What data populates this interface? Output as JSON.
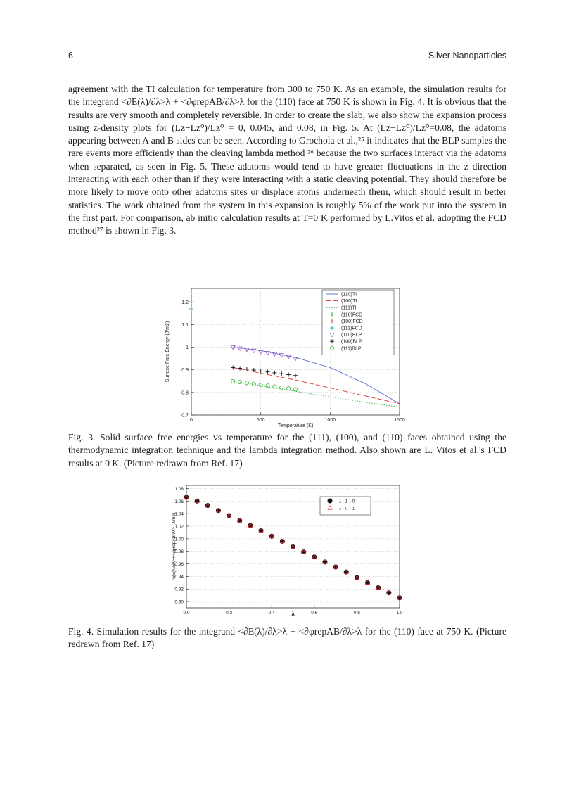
{
  "header": {
    "page": "6",
    "title": "Silver Nanoparticles"
  },
  "body": [
    "agreement with the TI calculation for temperature from 300 to 750 K. As an example, the simulation results for the integrand <∂E(λ)/∂λ>λ + <∂φrepAB/∂λ>λ for the (110) face at 750 K is shown in Fig. 4. It is obvious that the results are very smooth and completely reversible. In order to create the slab, we also show the expansion process using z-density plots for (Lz−Lz⁰)/Lz⁰ = 0, 0.045, and 0.08, in Fig. 5. At (Lz−Lz⁰)/Lz⁰=0.08, the adatoms appearing between A and B sides can be seen. According to Grochola et al.,²⁵ it indicates that the BLP samples the rare events more efficiently than the cleaving lambda method ²⁶ because the two surfaces interact via the adatoms when separated, as seen in Fig. 5. These adatoms would tend to have greater fluctuations in the z direction interacting with each other than if they were interacting with a static cleaving potential. They should therefore be more likely to move onto other adatoms sites or displace atoms underneath them, which should result in better statistics. The work obtained from the system in this expansion is roughly 5% of the work put into the system in the first part. For comparison, ab initio calculation results at T=0 K performed by L.Vitos et al. adopting the FCD method²⁷ is shown in Fig. 3."
  ],
  "captions": [
    "Fig. 3. Solid surface free energies vs temperature for the (111), (100), and (110) faces obtained using the thermodynamic integration technique and the lambda integration method. Also shown are L. Vitos et al.'s FCD results at 0 K. (Picture redrawn from Ref. 17)",
    "Fig. 4. Simulation results for the integrand <∂E(λ)/∂λ>λ + <∂φrepAB/∂λ>λ for the (110) face at 750 K. (Picture redrawn from Ref. 17)"
  ],
  "chart_data": [
    {
      "type": "line",
      "x_label": "Temperature (K)",
      "y_label": "Surface Free Energy (J/m2)",
      "xlim": [
        0,
        1500
      ],
      "ylim": [
        0.7,
        1.26
      ],
      "xticks": [
        0,
        500,
        1000,
        1500
      ],
      "yticks": [
        0.7,
        0.8,
        0.9,
        1,
        1.1,
        1.2
      ],
      "grid": true,
      "legend": "top-right",
      "series": [
        {
          "name": "(110)TI",
          "color": "#5a6fd0",
          "kind": "line",
          "dash": "solid",
          "x": [
            300,
            500,
            750,
            1000,
            1250,
            1500
          ],
          "values": [
            1.0,
            0.985,
            0.955,
            0.91,
            0.84,
            0.75
          ]
        },
        {
          "name": "(100)TI",
          "color": "#e03030",
          "kind": "line",
          "dash": "dashed",
          "x": [
            300,
            500,
            750,
            1000,
            1250,
            1500
          ],
          "values": [
            0.91,
            0.885,
            0.855,
            0.82,
            0.785,
            0.75
          ]
        },
        {
          "name": "(111)TI",
          "color": "#2fb52f",
          "kind": "line",
          "dash": "dotted",
          "x": [
            300,
            500,
            750,
            1000,
            1250,
            1500
          ],
          "values": [
            0.85,
            0.83,
            0.805,
            0.78,
            0.757,
            0.735
          ]
        },
        {
          "name": "(110)FCD",
          "color": "#2fb52f",
          "kind": "marker",
          "marker": "plus",
          "x": [
            0
          ],
          "values": [
            1.24
          ]
        },
        {
          "name": "(100)FCD",
          "color": "#e03030",
          "kind": "marker",
          "marker": "plus",
          "x": [
            0
          ],
          "values": [
            1.2
          ]
        },
        {
          "name": "(111)FCD",
          "color": "#30c0a0",
          "kind": "marker",
          "marker": "plus",
          "x": [
            0
          ],
          "values": [
            1.17
          ]
        },
        {
          "name": "(110)BLP",
          "color": "#9a50c8",
          "kind": "marker",
          "marker": "triangle-down",
          "x": [
            300,
            350,
            400,
            450,
            500,
            550,
            600,
            650,
            700,
            750
          ],
          "values": [
            1.0,
            0.995,
            0.99,
            0.985,
            0.98,
            0.975,
            0.97,
            0.965,
            0.958,
            0.95
          ]
        },
        {
          "name": "(100)BLP",
          "color": "#222222",
          "kind": "marker",
          "marker": "plus",
          "x": [
            300,
            350,
            400,
            450,
            500,
            550,
            600,
            650,
            700,
            750
          ],
          "values": [
            0.91,
            0.907,
            0.903,
            0.899,
            0.895,
            0.891,
            0.887,
            0.883,
            0.879,
            0.875
          ]
        },
        {
          "name": "(111)BLP",
          "color": "#2fb52f",
          "kind": "marker",
          "marker": "circle",
          "x": [
            300,
            350,
            400,
            450,
            500,
            550,
            600,
            650,
            700,
            750
          ],
          "values": [
            0.85,
            0.846,
            0.842,
            0.838,
            0.834,
            0.83,
            0.826,
            0.822,
            0.818,
            0.814
          ]
        }
      ]
    },
    {
      "type": "line",
      "x_label": "λ",
      "y_label": "<∂E(λ)/∂λ>+<∂φrepAB/∂λ> (J/m2)",
      "xlim": [
        0,
        1.0
      ],
      "ylim": [
        0.89,
        1.085
      ],
      "xticks": [
        {
          "value": 0,
          "label": "0.0"
        },
        0.2,
        0.4,
        0.6,
        0.8,
        {
          "value": 1,
          "label": "1.0"
        }
      ],
      "yticks": [
        {
          "value": 0.9,
          "label": "0.90"
        },
        0.92,
        0.94,
        0.96,
        0.98,
        {
          "value": 1,
          "label": "1.00"
        },
        1.02,
        1.04,
        1.06,
        1.08
      ],
      "grid": true,
      "legend": "top-right",
      "series": [
        {
          "name": "λ : 1→0",
          "color": "#111111",
          "kind": "marker",
          "marker": "filled-circle",
          "x": [
            0,
            0.05,
            0.1,
            0.15,
            0.2,
            0.25,
            0.3,
            0.35,
            0.4,
            0.45,
            0.5,
            0.55,
            0.6,
            0.65,
            0.7,
            0.75,
            0.8,
            0.85,
            0.9,
            0.95,
            1.0
          ],
          "values": [
            1.066,
            1.06,
            1.053,
            1.045,
            1.037,
            1.029,
            1.021,
            1.013,
            1.004,
            0.996,
            0.987,
            0.979,
            0.971,
            0.963,
            0.955,
            0.947,
            0.938,
            0.93,
            0.922,
            0.914,
            0.906
          ]
        },
        {
          "name": "λ : 0→1",
          "color": "#e03030",
          "kind": "marker",
          "marker": "triangle-up",
          "x": [
            0,
            0.05,
            0.1,
            0.15,
            0.2,
            0.25,
            0.3,
            0.35,
            0.4,
            0.45,
            0.5,
            0.55,
            0.6,
            0.65,
            0.7,
            0.75,
            0.8,
            0.85,
            0.9,
            0.95,
            1.0
          ],
          "values": [
            1.066,
            1.06,
            1.053,
            1.045,
            1.037,
            1.029,
            1.021,
            1.013,
            1.004,
            0.996,
            0.987,
            0.979,
            0.971,
            0.963,
            0.955,
            0.947,
            0.938,
            0.93,
            0.922,
            0.914,
            0.906
          ]
        }
      ]
    }
  ]
}
